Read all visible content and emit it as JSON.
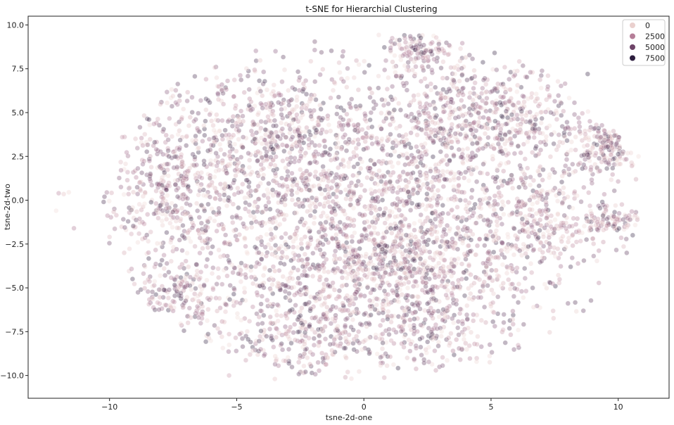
{
  "chart_data": {
    "type": "scatter",
    "title": "t-SNE for Hierarchial Clustering",
    "xlabel": "tsne-2d-one",
    "ylabel": "tsne-2d-two",
    "xlim": [
      -13.2,
      12.0
    ],
    "ylim": [
      -11.3,
      10.5
    ],
    "xticks": [
      -10,
      -5,
      0,
      5,
      10
    ],
    "yticks": [
      -10.0,
      -7.5,
      -5.0,
      -2.5,
      0.0,
      2.5,
      5.0,
      7.5,
      10.0
    ],
    "xtick_labels": [
      "−10",
      "−5",
      "0",
      "5",
      "10"
    ],
    "ytick_labels": [
      "−10.0",
      "−7.5",
      "−5.0",
      "−2.5",
      "0.0",
      "2.5",
      "5.0",
      "7.5",
      "10.0"
    ],
    "grid": false,
    "hue_range": [
      0,
      9000
    ],
    "point_alpha": 0.35,
    "legend": {
      "placement": "top-right",
      "entries": [
        {
          "label": "0",
          "value": 0,
          "color": "#ead0ce"
        },
        {
          "label": "2500",
          "value": 2500,
          "color": "#b57e98"
        },
        {
          "label": "5000",
          "value": 5000,
          "color": "#6e4468"
        },
        {
          "label": "7500",
          "value": 7500,
          "color": "#2d1e3e"
        }
      ]
    },
    "colormap": [
      "#f1dcd8",
      "#dbb3b9",
      "#b57e98",
      "#8a5a7e",
      "#5e3a5d",
      "#2d1e3e"
    ],
    "clusters": [
      {
        "x": 0.0,
        "y": -0.5,
        "sx": 4.6,
        "sy": 4.0,
        "n": 2600
      },
      {
        "x": 1.2,
        "y": -4.2,
        "sx": 2.6,
        "sy": 1.6,
        "n": 500
      },
      {
        "x": 4.6,
        "y": 4.8,
        "sx": 1.8,
        "sy": 1.5,
        "n": 420
      },
      {
        "x": 2.2,
        "y": 8.5,
        "sx": 0.7,
        "sy": 0.6,
        "n": 120
      },
      {
        "x": -7.5,
        "y": 1.0,
        "sx": 1.3,
        "sy": 2.2,
        "n": 360
      },
      {
        "x": -7.5,
        "y": -5.5,
        "sx": 0.9,
        "sy": 0.9,
        "n": 140
      },
      {
        "x": 9.6,
        "y": 3.0,
        "sx": 0.7,
        "sy": 0.8,
        "n": 200
      },
      {
        "x": 9.6,
        "y": -1.2,
        "sx": 0.6,
        "sy": 0.4,
        "n": 80
      },
      {
        "x": 7.0,
        "y": -1.0,
        "sx": 0.6,
        "sy": 1.5,
        "n": 150
      },
      {
        "x": -2.5,
        "y": -8.0,
        "sx": 1.5,
        "sy": 1.2,
        "n": 230
      },
      {
        "x": -3.5,
        "y": 4.5,
        "sx": 1.6,
        "sy": 1.6,
        "n": 280
      },
      {
        "x": 2.5,
        "y": -7.6,
        "sx": 1.2,
        "sy": 1.0,
        "n": 130
      }
    ],
    "outliers": [
      {
        "x": -12.0,
        "y": 0.4
      },
      {
        "x": -11.8,
        "y": 0.35
      },
      {
        "x": -11.6,
        "y": 0.45
      },
      {
        "x": -11.4,
        "y": -1.6
      },
      {
        "x": -12.1,
        "y": -0.6
      },
      {
        "x": -10.0,
        "y": -2.1
      },
      {
        "x": -10.2,
        "y": 0.2
      },
      {
        "x": -9.5,
        "y": 3.6
      },
      {
        "x": 10.5,
        "y": 2.7
      },
      {
        "x": 10.8,
        "y": 2.5
      },
      {
        "x": 8.8,
        "y": 7.2
      },
      {
        "x": -3.5,
        "y": -10.2
      },
      {
        "x": -5.3,
        "y": -10.0
      },
      {
        "x": 10.0,
        "y": -1.0
      },
      {
        "x": 10.2,
        "y": -1.1
      }
    ]
  }
}
